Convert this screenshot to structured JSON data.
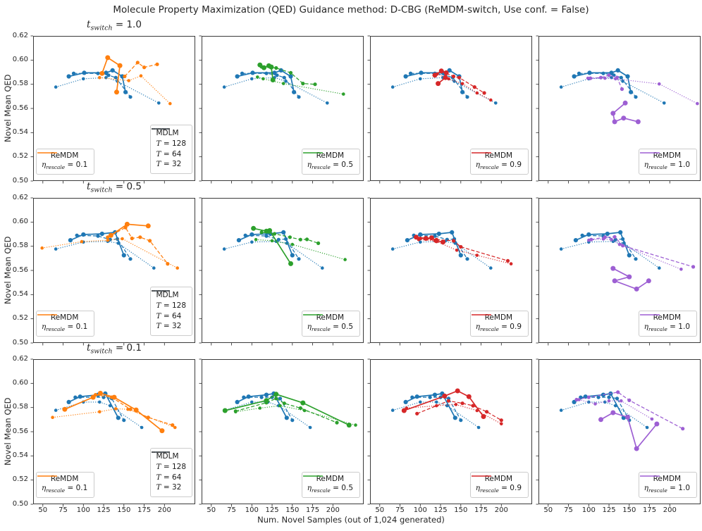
{
  "chart_data": {
    "type": "line",
    "title": "Molecule Property Maximization (QED) Guidance method: D-CBG (ReMDM-switch, Use conf. = False)",
    "xlabel": "Num. Novel Samples (out of 1,024 generated)",
    "ylabel": "Novel Mean QED",
    "xlim": [
      38,
      238
    ],
    "ylim": [
      0.5,
      0.62
    ],
    "xticks": [
      50,
      75,
      100,
      125,
      150,
      175,
      200
    ],
    "ytick_labels": [
      "0.50",
      "0.52",
      "0.54",
      "0.56",
      "0.58",
      "0.60",
      "0.62"
    ],
    "grid": false,
    "rows": [
      {
        "title_sym": "t",
        "title_sub": "switch",
        "title_val": "1.0",
        "mdlm": {
          "solid": [
            [
              82,
              0.5865
            ],
            [
              101,
              0.5895
            ],
            [
              128,
              0.5895
            ],
            [
              136,
              0.5915
            ],
            [
              148,
              0.5865
            ],
            [
              152,
              0.5735
            ]
          ],
          "dashed": [
            [
              88,
              0.589
            ],
            [
              118,
              0.589
            ],
            [
              131,
              0.5875
            ],
            [
              140,
              0.5855
            ],
            [
              158,
              0.5695
            ]
          ],
          "dotted": [
            [
              66,
              0.5777
            ],
            [
              100,
              0.5845
            ],
            [
              128,
              0.5855
            ],
            [
              142,
              0.5825
            ],
            [
              193,
              0.5645
            ]
          ]
        }
      },
      {
        "title_sym": "t",
        "title_sub": "switch",
        "title_val": "0.5",
        "mdlm": {
          "solid": [
            [
              84,
              0.585
            ],
            [
              100,
              0.5897
            ],
            [
              123,
              0.5903
            ],
            [
              139,
              0.5915
            ],
            [
              150,
              0.5725
            ]
          ],
          "dashed": [
            [
              92,
              0.589
            ],
            [
              118,
              0.5885
            ],
            [
              133,
              0.5855
            ],
            [
              142,
              0.586
            ],
            [
              158,
              0.5695
            ]
          ],
          "dotted": [
            [
              66,
              0.5777
            ],
            [
              100,
              0.5835
            ],
            [
              130,
              0.584
            ],
            [
              143,
              0.5825
            ],
            [
              187,
              0.562
            ]
          ]
        }
      },
      {
        "title_sym": "t",
        "title_sub": "switch",
        "title_val": "0.1",
        "mdlm": {
          "solid": [
            [
              82,
              0.5845
            ],
            [
              96,
              0.589
            ],
            [
              118,
              0.5905
            ],
            [
              127,
              0.5915
            ],
            [
              143,
              0.5715
            ]
          ],
          "dashed": [
            [
              90,
              0.5885
            ],
            [
              112,
              0.5885
            ],
            [
              125,
              0.5885
            ],
            [
              135,
              0.5875
            ],
            [
              150,
              0.5695
            ]
          ],
          "dotted": [
            [
              66,
              0.5777
            ],
            [
              100,
              0.5845
            ],
            [
              120,
              0.5845
            ],
            [
              133,
              0.5815
            ],
            [
              172,
              0.5635
            ]
          ]
        }
      }
    ],
    "cols": [
      {
        "eta": "0.1",
        "color": "#ff7f0e"
      },
      {
        "eta": "0.5",
        "color": "#2ca02c"
      },
      {
        "eta": "0.9",
        "color": "#d62728"
      },
      {
        "eta": "1.0",
        "color": "#9d5fd3"
      }
    ],
    "remdm": [
      [
        {
          "solid": [
            [
              123,
              0.589
            ],
            [
              130,
              0.602
            ],
            [
              145,
              0.5955
            ],
            [
              141,
              0.5735
            ]
          ],
          "dashed": [
            [
              151,
              0.5865
            ],
            [
              167,
              0.598
            ],
            [
              175,
              0.594
            ],
            [
              191,
              0.5965
            ]
          ],
          "dotted": [
            [
              120,
              0.5855
            ],
            [
              156,
              0.583
            ],
            [
              171,
              0.587
            ],
            [
              207,
              0.564
            ]
          ]
        },
        {
          "solid": [
            [
              110,
              0.596
            ],
            [
              115,
              0.5937
            ],
            [
              121,
              0.5953
            ],
            [
              124,
              0.5943
            ],
            [
              126,
              0.5836
            ]
          ],
          "dashed": [
            [
              112,
              0.5945
            ],
            [
              130,
              0.5935
            ],
            [
              148,
              0.5895
            ],
            [
              163,
              0.5806
            ],
            [
              178,
              0.58
            ]
          ],
          "dotted": [
            [
              107,
              0.586
            ],
            [
              114,
              0.5845
            ],
            [
              139,
              0.5806
            ],
            [
              213,
              0.5719
            ]
          ]
        },
        {
          "solid": [
            [
              118,
              0.5875
            ],
            [
              126,
              0.591
            ],
            [
              132,
              0.5895
            ],
            [
              131,
              0.5855
            ],
            [
              122,
              0.5806
            ]
          ],
          "dashed": [
            [
              126,
              0.5908
            ],
            [
              141,
              0.5865
            ],
            [
              148,
              0.5855
            ],
            [
              167,
              0.5777
            ],
            [
              179,
              0.5728
            ]
          ],
          "dotted": [
            [
              121,
              0.5885
            ],
            [
              135,
              0.5845
            ],
            [
              152,
              0.5805
            ],
            [
              170,
              0.5728
            ],
            [
              187,
              0.567
            ]
          ]
        },
        {
          "solid": [
            [
              145,
              0.5645
            ],
            [
              130,
              0.556
            ],
            [
              132,
              0.549
            ],
            [
              143,
              0.552
            ],
            [
              161,
              0.549
            ]
          ],
          "dashed": [
            [
              102,
              0.585
            ],
            [
              115,
              0.5855
            ],
            [
              125,
              0.5875
            ],
            [
              135,
              0.5855
            ],
            [
              141,
              0.576
            ]
          ],
          "dotted": [
            [
              99,
              0.585
            ],
            [
              120,
              0.585
            ],
            [
              133,
              0.5845
            ],
            [
              187,
              0.5803
            ],
            [
              234,
              0.564
            ]
          ]
        }
      ],
      [
        {
          "solid": [
            [
              134,
              0.589
            ],
            [
              154,
              0.5982
            ],
            [
              180,
              0.5968
            ]
          ],
          "dashed": [
            [
              130,
              0.5875
            ],
            [
              152,
              0.5955
            ],
            [
              160,
              0.5865
            ],
            [
              170,
              0.5875
            ],
            [
              182,
              0.5845
            ],
            [
              204,
              0.5655
            ]
          ],
          "dotted": [
            [
              49,
              0.5785
            ],
            [
              98,
              0.5838
            ],
            [
              130,
              0.585
            ],
            [
              148,
              0.5862
            ],
            [
              216,
              0.562
            ]
          ]
        },
        {
          "solid": [
            [
              102,
              0.5948
            ],
            [
              118,
              0.5925
            ],
            [
              122,
              0.593
            ],
            [
              148,
              0.5656
            ]
          ],
          "dashed": [
            [
              112,
              0.5915
            ],
            [
              128,
              0.5903
            ],
            [
              147,
              0.5875
            ],
            [
              160,
              0.5855
            ],
            [
              168,
              0.5857
            ],
            [
              182,
              0.5825
            ]
          ],
          "dotted": [
            [
              105,
              0.5855
            ],
            [
              125,
              0.5845
            ],
            [
              150,
              0.5815
            ],
            [
              215,
              0.569
            ]
          ]
        },
        {
          "solid": [
            [
              95,
              0.5875
            ],
            [
              107,
              0.5865
            ],
            [
              114,
              0.587
            ],
            [
              120,
              0.5845
            ],
            [
              128,
              0.5835
            ]
          ],
          "dashed": [
            [
              100,
              0.5865
            ],
            [
              120,
              0.5855
            ],
            [
              141,
              0.5845
            ],
            [
              150,
              0.5795
            ],
            [
              208,
              0.568
            ]
          ],
          "dotted": [
            [
              98,
              0.5855
            ],
            [
              118,
              0.5845
            ],
            [
              145,
              0.5767
            ],
            [
              170,
              0.5725
            ],
            [
              212,
              0.5655
            ]
          ]
        },
        {
          "solid": [
            [
              130,
              0.5617
            ],
            [
              150,
              0.5547
            ],
            [
              132,
              0.5514
            ],
            [
              159,
              0.5446
            ],
            [
              174,
              0.5514
            ]
          ],
          "dashed": [
            [
              103,
              0.5855
            ],
            [
              120,
              0.5875
            ],
            [
              132,
              0.5877
            ],
            [
              142,
              0.5805
            ],
            [
              229,
              0.563
            ]
          ],
          "dotted": [
            [
              100,
              0.585
            ],
            [
              118,
              0.586
            ],
            [
              128,
              0.5855
            ],
            [
              138,
              0.5815
            ],
            [
              214,
              0.561
            ]
          ]
        }
      ],
      [
        {
          "solid": [
            [
              77,
              0.5785
            ],
            [
              112,
              0.5885
            ],
            [
              121,
              0.5918
            ],
            [
              138,
              0.5885
            ],
            [
              165,
              0.578
            ],
            [
              197,
              0.5608
            ]
          ],
          "dashed": [
            [
              115,
              0.5905
            ],
            [
              135,
              0.5885
            ],
            [
              158,
              0.5785
            ],
            [
              180,
              0.5718
            ],
            [
              210,
              0.5655
            ]
          ],
          "dotted": [
            [
              62,
              0.5718
            ],
            [
              120,
              0.5765
            ],
            [
              140,
              0.579
            ],
            [
              155,
              0.5785
            ],
            [
              213,
              0.5635
            ]
          ]
        },
        {
          "solid": [
            [
              67,
              0.5775
            ],
            [
              118,
              0.5858
            ],
            [
              130,
              0.591
            ],
            [
              163,
              0.5838
            ],
            [
              220,
              0.5655
            ]
          ],
          "dashed": [
            [
              80,
              0.577
            ],
            [
              118,
              0.584
            ],
            [
              130,
              0.5875
            ],
            [
              140,
              0.5835
            ],
            [
              160,
              0.5795
            ],
            [
              205,
              0.5675
            ]
          ],
          "dotted": [
            [
              80,
              0.5765
            ],
            [
              110,
              0.5795
            ],
            [
              135,
              0.5815
            ],
            [
              165,
              0.5775
            ],
            [
              228,
              0.5655
            ]
          ]
        },
        {
          "solid": [
            [
              80,
              0.5775
            ],
            [
              130,
              0.5895
            ],
            [
              146,
              0.5938
            ],
            [
              160,
              0.589
            ],
            [
              178,
              0.5725
            ]
          ],
          "dashed": [
            [
              96,
              0.575
            ],
            [
              135,
              0.5855
            ],
            [
              152,
              0.5835
            ],
            [
              165,
              0.5815
            ],
            [
              182,
              0.5765
            ],
            [
              200,
              0.5695
            ]
          ],
          "dotted": [
            [
              83,
              0.5795
            ],
            [
              120,
              0.5815
            ],
            [
              144,
              0.5825
            ],
            [
              170,
              0.5775
            ],
            [
              200,
              0.5665
            ]
          ]
        },
        {
          "solid": [
            [
              115,
              0.57
            ],
            [
              130,
              0.5757
            ],
            [
              148,
              0.572
            ],
            [
              159,
              0.546
            ],
            [
              184,
              0.5664
            ]
          ],
          "dashed": [
            [
              85,
              0.5865
            ],
            [
              100,
              0.5885
            ],
            [
              136,
              0.5927
            ],
            [
              150,
              0.586
            ],
            [
              216,
              0.5625
            ]
          ],
          "dotted": [
            [
              88,
              0.5865
            ],
            [
              108,
              0.583
            ],
            [
              125,
              0.5855
            ],
            [
              140,
              0.5855
            ],
            [
              178,
              0.5705
            ]
          ]
        }
      ]
    ]
  },
  "legend": {
    "mdlm_label": "MDLM",
    "remdm_label": "ReMDM",
    "eta_sym": "η",
    "eta_sub": "rescale",
    "t_sym": "T",
    "t_entries": [
      {
        "val": "128",
        "style": "solid"
      },
      {
        "val": "64",
        "style": "dashed"
      },
      {
        "val": "32",
        "style": "dotted"
      }
    ]
  },
  "colors": {
    "mdlm": "#1f77b4",
    "style_sample_line": "#4d4d4d",
    "axis": "#262626"
  }
}
